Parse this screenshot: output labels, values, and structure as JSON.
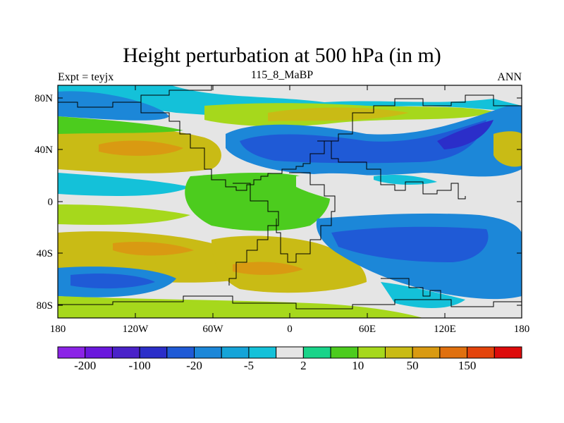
{
  "title": "Height perturbation at 500 hPa (in m)",
  "subtitle_left": "Expt = teyjx",
  "subtitle_center": "115_8_MaBP",
  "subtitle_right": "ANN",
  "lon_ticks": [
    "180",
    "120W",
    "60W",
    "0",
    "60E",
    "120E",
    "180"
  ],
  "lat_ticks": [
    "80N",
    "40N",
    "0",
    "40S",
    "80S"
  ],
  "colorbar": {
    "colors": [
      "#8b23e6",
      "#6a18dd",
      "#4a22c9",
      "#2b2ec9",
      "#1f5ad6",
      "#1c87d8",
      "#15a4d8",
      "#14c1d9",
      "#e5e5e5",
      "#19d489",
      "#4ccc1e",
      "#a6d81c",
      "#c9bb15",
      "#d99a12",
      "#e0700e",
      "#e3430b",
      "#dd0b0b"
    ],
    "labels": [
      "-200",
      "-100",
      "-20",
      "-5",
      "2",
      "10",
      "50",
      "150"
    ]
  },
  "palette": {
    "c_strong_neg": "#2b2ec9",
    "c_neg_deep": "#1f5ad6",
    "c_neg": "#1c87d8",
    "c_neg_light": "#14c1d9",
    "c_zero": "#e5e5e5",
    "c_pos_light": "#19d489",
    "c_pos": "#4ccc1e",
    "c_pos_mid": "#a6d81c",
    "c_pos_strong": "#c9bb15",
    "c_pos_peak": "#d99a12"
  }
}
